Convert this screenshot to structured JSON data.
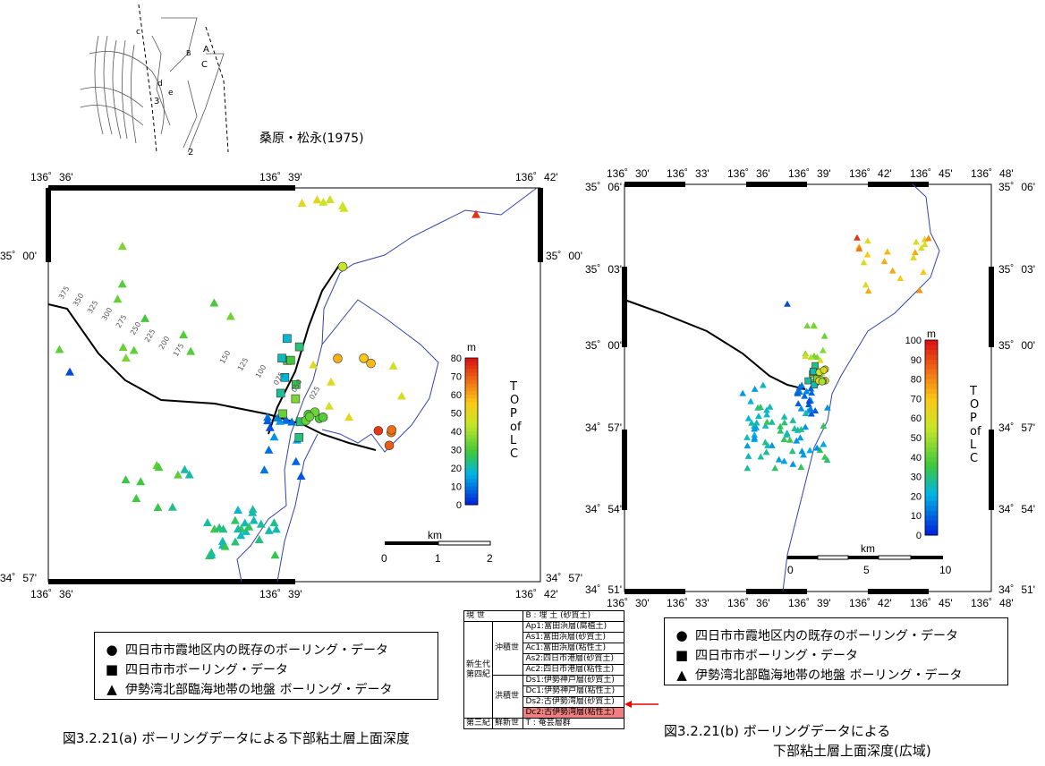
{
  "credit": "桑原・松永(1975)",
  "inset_labels": {
    "a": "A",
    "b": "B",
    "c": "C",
    "d": "d",
    "e": "e",
    "n3": "3",
    "n2": "2",
    "c2": "c"
  },
  "map_a": {
    "top_ticks": [
      "136゜36'",
      "136゜39'",
      "136゜42'"
    ],
    "bottom_ticks": [
      "136゜36'",
      "136゜39'",
      "136゜42'"
    ],
    "left_ticks": [
      "35゜00'",
      "34゜57'"
    ],
    "right_ticks": [
      "35゜00'",
      "34゜57'"
    ],
    "colorbar": {
      "unit": "m",
      "ticks": [
        "80",
        "70",
        "60",
        "50",
        "40",
        "30",
        "20",
        "10",
        "0"
      ],
      "label": "TOP of LC"
    },
    "scalebar": {
      "unit": "km",
      "ticks": [
        "0",
        "1",
        "2"
      ]
    },
    "contours": [
      "375",
      "350",
      "325",
      "300",
      "275",
      "250",
      "225",
      "200",
      "175",
      "150",
      "125",
      "100",
      "075",
      "050",
      "025"
    ]
  },
  "map_b": {
    "top_ticks": [
      "136゜30'",
      "136゜33'",
      "136゜36'",
      "136゜39'",
      "136゜42'",
      "136゜45'",
      "136゜48'"
    ],
    "bottom_ticks": [
      "136゜30'",
      "136゜33'",
      "136゜36'",
      "136゜39'",
      "136゜42'",
      "136゜45'",
      "136゜48'"
    ],
    "left_ticks": [
      "35゜06'",
      "35゜03'",
      "35゜00'",
      "34゜57'",
      "34゜54'",
      "34゜51'"
    ],
    "right_ticks": [
      "35゜06'",
      "35゜03'",
      "35゜00'",
      "34゜57'",
      "34゜54'",
      "34゜51'"
    ],
    "colorbar": {
      "unit": "m",
      "ticks": [
        "100",
        "90",
        "80",
        "70",
        "60",
        "50",
        "40",
        "30",
        "20",
        "10",
        "0"
      ],
      "label": "TOP of LC"
    },
    "scalebar": {
      "unit": "km",
      "ticks": [
        "0",
        "5",
        "10"
      ]
    }
  },
  "legend": [
    {
      "icon": "circle",
      "symbol": "●",
      "text": "四日市市霞地区内の既存のボーリング・データ"
    },
    {
      "icon": "square",
      "symbol": "■",
      "text": "四日市市ボーリング・データ"
    },
    {
      "icon": "triangle",
      "symbol": "▲",
      "text": "伊勢湾北部臨海地帯の地盤 ボーリング・データ"
    }
  ],
  "caption_a": "図3.2.21(a)  ボーリングデータによる下部粘土層上面深度",
  "caption_b_line1": "図3.2.21(b)   ボーリングデータによる",
  "caption_b_line2": "下部粘土層上面深度(広域)",
  "strat": {
    "r0": [
      "現 世",
      "B : 埋 土 (砂質土)"
    ],
    "era": "新生代第四紀",
    "holocene": "沖積世",
    "pleistocene": "洪積世",
    "rows": [
      "Ap1:富田浜層(腐植土)",
      "As1:富田浜層(砂質土)",
      "Ac1:富田浜層(粘性土)",
      "As2:四日市港層(砂質土)",
      "Ac2:四日市港層(粘性土)",
      "Ds1:伊勢神戸層(砂質土)",
      "Dc1:伊勢神戸層(粘性土)",
      "Ds2:古伊勢湾層(砂質土)",
      "Dc2:古伊勢湾層(粘性土)"
    ],
    "last": [
      "第三紀",
      "鮮新世",
      "T : 奄芸層群"
    ]
  }
}
